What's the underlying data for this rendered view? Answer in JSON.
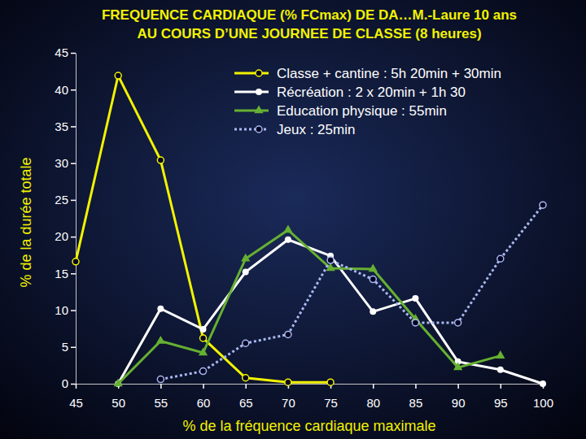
{
  "chart_data": {
    "type": "line",
    "title": [
      "FREQUENCE CARDIAQUE (% FCmax) DE DA…M.-Laure 10 ans",
      "AU COURS D’UNE JOURNEE DE CLASSE (8 heures)"
    ],
    "x_label": "% de la fréquence cardiaque maximale",
    "y_label": "% de la durée totale",
    "x": [
      45,
      50,
      55,
      60,
      65,
      70,
      75,
      80,
      85,
      90,
      95,
      100
    ],
    "series": [
      {
        "name": "Classe + cantine : 5h 20min + 30min",
        "color": "#f2f200",
        "marker": "open-circle",
        "line_style": "solid",
        "values": [
          16.6,
          41.9,
          30.4,
          6.2,
          0.8,
          0.2,
          0.2,
          null,
          null,
          null,
          null,
          null
        ]
      },
      {
        "name": "Récréation : 2 x 20min + 1h 30",
        "color": "#ffffff",
        "marker": "circle",
        "line_style": "solid",
        "values": [
          null,
          0,
          10.2,
          7.4,
          15.2,
          19.6,
          17.4,
          9.8,
          11.6,
          3.0,
          1.9,
          0
        ]
      },
      {
        "name": "Education physique : 55min",
        "color": "#66b032",
        "marker": "triangle",
        "line_style": "solid",
        "values": [
          null,
          0,
          5.8,
          4.2,
          17.0,
          20.9,
          15.7,
          15.6,
          8.8,
          2.2,
          3.8,
          null
        ]
      },
      {
        "name": "Jeux : 25min",
        "color": "#aab8f0",
        "marker": "open-circle",
        "line_style": "dotted",
        "values": [
          null,
          null,
          0.6,
          1.7,
          5.5,
          6.7,
          16.8,
          14.2,
          8.3,
          8.3,
          17.0,
          24.3
        ]
      }
    ],
    "xlim": [
      45,
      100
    ],
    "xticks": [
      45,
      50,
      55,
      60,
      65,
      70,
      75,
      80,
      85,
      90,
      95,
      100
    ],
    "ylim": [
      0,
      45
    ],
    "yticks": [
      0,
      5,
      10,
      15,
      20,
      25,
      30,
      35,
      40,
      45
    ],
    "grid": false,
    "legend": "top-right"
  }
}
